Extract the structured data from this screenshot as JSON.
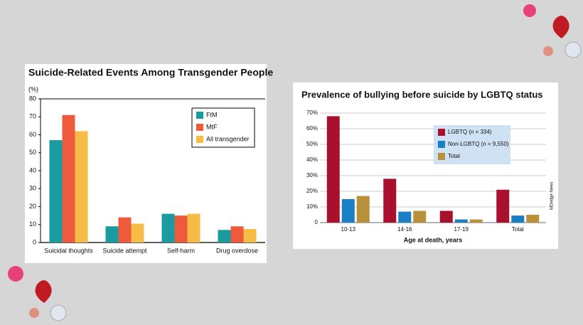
{
  "chart_data": [
    {
      "type": "bar",
      "title": "Suicide-Related Events Among Transgender People",
      "y_label": "(%)",
      "categories": [
        "Suicidal thoughts",
        "Suicide attempt",
        "Self-harm",
        "Drug overdose"
      ],
      "series": [
        {
          "name": "FtM",
          "color": "#1a9ba0",
          "values": [
            57,
            9,
            16,
            7
          ]
        },
        {
          "name": "MtF",
          "color": "#ee5a3c",
          "values": [
            71,
            14,
            15,
            9
          ]
        },
        {
          "name": "All transgender",
          "color": "#f7bc45",
          "values": [
            62,
            10.5,
            16,
            7.5
          ]
        }
      ],
      "ylim": [
        0,
        80
      ],
      "yticks": [
        0,
        10,
        20,
        30,
        40,
        50,
        60,
        70,
        80
      ],
      "grid": false,
      "legend": "upper right"
    },
    {
      "type": "bar",
      "title": "Prevalence of bullying before suicide by LGBTQ status",
      "x_label": "Age at death, years",
      "credit": "MDedge News",
      "categories": [
        "10-13",
        "14-16",
        "17-19",
        "Total"
      ],
      "series": [
        {
          "name": "LGBTQ (n = 334)",
          "color": "#a8102e",
          "values": [
            68,
            28,
            7.5,
            21
          ]
        },
        {
          "name": "Non-LGBTQ (n = 9,550)",
          "color": "#1a7fc4",
          "values": [
            15,
            7,
            2,
            4.5
          ]
        },
        {
          "name": "Total",
          "color": "#b8913a",
          "values": [
            17,
            7.5,
            2,
            5
          ]
        }
      ],
      "ylim": [
        0,
        70
      ],
      "yticks": [
        0,
        {
          "value": 10,
          "label": "10%"
        },
        {
          "value": 20,
          "label": "20%"
        },
        {
          "value": 30,
          "label": "30%"
        },
        {
          "value": 40,
          "label": "40%"
        },
        {
          "value": 50,
          "label": "50%"
        },
        {
          "value": 60,
          "label": "60%"
        },
        {
          "value": 70,
          "label": "70%"
        }
      ],
      "grid": true,
      "legend": "upper right"
    }
  ]
}
